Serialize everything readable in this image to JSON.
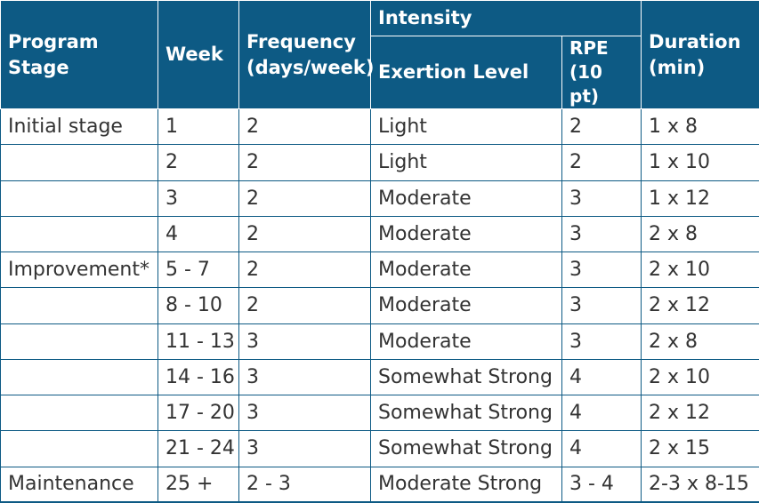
{
  "header": {
    "program_stage": "Program Stage",
    "week": "Week",
    "frequency": "Frequency (days/week)",
    "intensity": "Intensity",
    "exertion_level": "Exertion Level",
    "rpe": "RPE (10 pt)",
    "duration": "Duration (min)"
  },
  "rows": [
    {
      "stage": "Initial stage",
      "week": "1",
      "frequency": "2",
      "exertion": "Light",
      "rpe": "2",
      "duration": "1 x 8"
    },
    {
      "stage": "",
      "week": "2",
      "frequency": "2",
      "exertion": "Light",
      "rpe": "2",
      "duration": "1 x 10"
    },
    {
      "stage": "",
      "week": "3",
      "frequency": "2",
      "exertion": "Moderate",
      "rpe": "3",
      "duration": "1 x 12"
    },
    {
      "stage": "",
      "week": "4",
      "frequency": "2",
      "exertion": "Moderate",
      "rpe": "3",
      "duration": "2 x 8"
    },
    {
      "stage": "Improvement*",
      "week": "5 - 7",
      "frequency": "2",
      "exertion": "Moderate",
      "rpe": "3",
      "duration": "2 x 10"
    },
    {
      "stage": "",
      "week": "8 - 10",
      "frequency": "2",
      "exertion": "Moderate",
      "rpe": "3",
      "duration": "2 x 12"
    },
    {
      "stage": "",
      "week": "11 - 13",
      "frequency": "3",
      "exertion": "Moderate",
      "rpe": "3",
      "duration": "2 x 8"
    },
    {
      "stage": "",
      "week": "14 - 16",
      "frequency": "3",
      "exertion": "Somewhat Strong",
      "rpe": "4",
      "duration": "2 x 10"
    },
    {
      "stage": "",
      "week": "17 - 20",
      "frequency": "3",
      "exertion": "Somewhat Strong",
      "rpe": "4",
      "duration": "2 x 12"
    },
    {
      "stage": "",
      "week": "21 - 24",
      "frequency": "3",
      "exertion": "Somewhat Strong",
      "rpe": "4",
      "duration": "2 x 15"
    },
    {
      "stage": "Maintenance",
      "week": "25 +",
      "frequency": "2 - 3",
      "exertion": "Moderate Strong",
      "rpe": "3 - 4",
      "duration": "2-3 x 8-15"
    }
  ],
  "colors": {
    "header_bg": "#0d5a84",
    "header_text": "#ffffff",
    "body_text": "#333333",
    "border": "#0d5a84"
  }
}
